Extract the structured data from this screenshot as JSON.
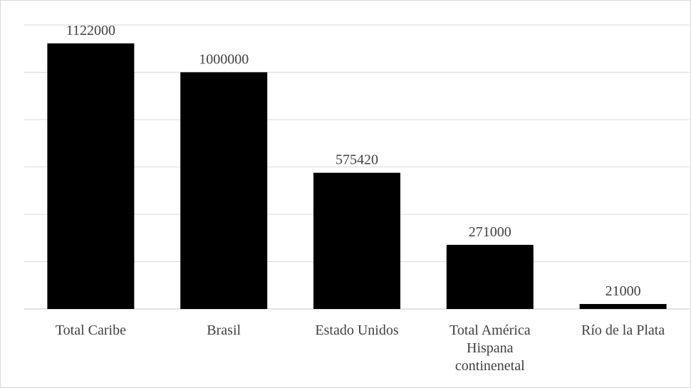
{
  "chart_data": {
    "type": "bar",
    "title": "",
    "xlabel": "",
    "ylabel": "",
    "categories": [
      [
        "Total Caribe"
      ],
      [
        "Brasil"
      ],
      [
        "Estado Unidos"
      ],
      [
        "Total América",
        "Hispana",
        "continenetal"
      ],
      [
        "Río de la Plata"
      ]
    ],
    "values": [
      1122000,
      1000000,
      575420,
      271000,
      21000
    ],
    "value_labels": [
      "1122000",
      "1000000",
      "575420",
      "271000",
      "21000"
    ],
    "ylim": [
      0,
      1200000
    ],
    "gridline_step": 200000,
    "grid": true,
    "legend": "none",
    "bar_color": "#000000",
    "grid_color": "#d9d9d9",
    "text_color": "#404040"
  }
}
